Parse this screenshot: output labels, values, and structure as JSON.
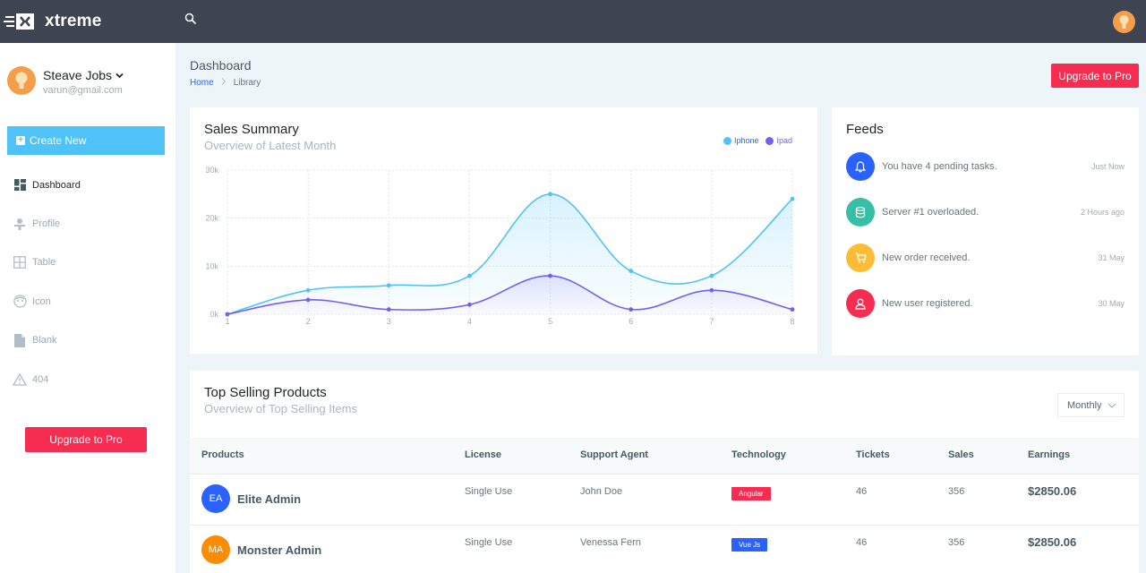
{
  "brand": {
    "name": "xtreme"
  },
  "sidebar": {
    "user": {
      "name": "Steave Jobs",
      "email": "varun@gmail.com"
    },
    "create_label": "Create New",
    "items": [
      {
        "label": "Dashboard",
        "icon": "dashboard-icon"
      },
      {
        "label": "Profile",
        "icon": "profile-icon"
      },
      {
        "label": "Table",
        "icon": "table-icon"
      },
      {
        "label": "Icon",
        "icon": "face-icon"
      },
      {
        "label": "Blank",
        "icon": "file-icon"
      },
      {
        "label": "404",
        "icon": "warning-icon"
      }
    ],
    "upgrade_label": "Upgrade to Pro"
  },
  "page": {
    "title": "Dashboard",
    "breadcrumb": [
      "Home",
      "Library"
    ],
    "upgrade_label": "Upgrade to Pro"
  },
  "sales": {
    "title": "Sales Summary",
    "subtitle": "Overview of Latest Month"
  },
  "chart_data": {
    "type": "area",
    "x": [
      1,
      2,
      3,
      4,
      5,
      6,
      7,
      8
    ],
    "yticks": [
      "30k",
      "20k",
      "10k",
      "0k"
    ],
    "ylim": [
      0,
      30000
    ],
    "grid": true,
    "legend_position": "top-right",
    "series": [
      {
        "name": "Iphone",
        "color": "#4fc3f7",
        "values": [
          0,
          5000,
          6000,
          8000,
          25000,
          9000,
          8000,
          24000
        ]
      },
      {
        "name": "Ipad",
        "color": "#7460ee",
        "values": [
          0,
          3000,
          1000,
          2000,
          8000,
          1000,
          5000,
          1000
        ]
      }
    ]
  },
  "feeds": {
    "title": "Feeds",
    "items": [
      {
        "text": "You have 4 pending tasks.",
        "time": "Just Now",
        "icon": "bell-icon",
        "color": "#2962ff"
      },
      {
        "text": "Server #1 overloaded.",
        "time": "2 Hours ago",
        "icon": "database-icon",
        "color": "#36bea6"
      },
      {
        "text": "New order received.",
        "time": "31 May",
        "icon": "cart-icon",
        "color": "#ffbc34"
      },
      {
        "text": "New user registered.",
        "time": "30 May",
        "icon": "user-icon",
        "color": "#f62d51"
      }
    ]
  },
  "products": {
    "title": "Top Selling Products",
    "subtitle": "Overview of Top Selling Items",
    "filter": "Monthly",
    "columns": [
      "Products",
      "License",
      "Support Agent",
      "Technology",
      "Tickets",
      "Sales",
      "Earnings"
    ],
    "rows": [
      {
        "initials": "EA",
        "avatar_color": "#2962ff",
        "name": "Elite Admin",
        "license": "Single Use",
        "agent": "John Doe",
        "tech": "Angular",
        "tech_color": "#f62d51",
        "tickets": "46",
        "sales": "356",
        "earnings": "$2850.06"
      },
      {
        "initials": "MA",
        "avatar_color": "#fb8c00",
        "name": "Monster Admin",
        "license": "Single Use",
        "agent": "Venessa Fern",
        "tech": "Vue Js",
        "tech_color": "#2962ff",
        "tickets": "46",
        "sales": "356",
        "earnings": "$2850.06"
      }
    ]
  }
}
